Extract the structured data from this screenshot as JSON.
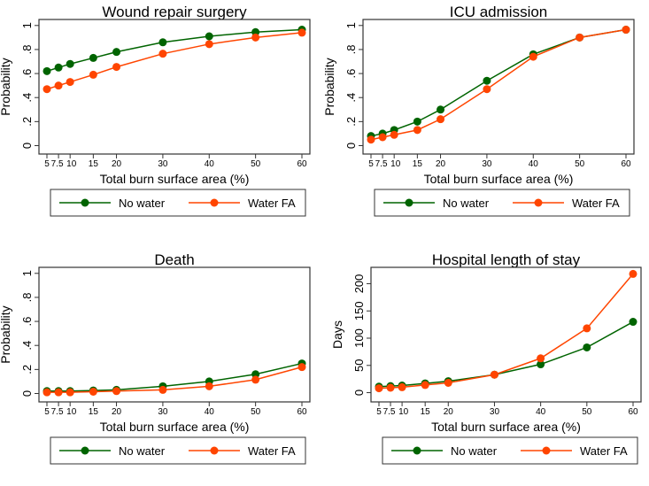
{
  "chart_data": [
    {
      "type": "line",
      "title": "Wound repair surgery",
      "xlabel": "Total burn surface area (%)",
      "ylabel": "Probability",
      "x": [
        5,
        7.5,
        10,
        15,
        20,
        30,
        40,
        50,
        60
      ],
      "x_tick_labels": [
        "5",
        "7.5",
        "10",
        "15",
        "20",
        "30",
        "40",
        "50",
        "60"
      ],
      "y_ticks": [
        0,
        0.2,
        0.4,
        0.6,
        0.8,
        1
      ],
      "y_tick_labels": [
        "0",
        ".2",
        ".4",
        ".6",
        ".8",
        "1"
      ],
      "ylim": [
        -0.07,
        1.05
      ],
      "series": [
        {
          "name": "No water",
          "color": "#006400",
          "values": [
            0.62,
            0.65,
            0.68,
            0.73,
            0.78,
            0.86,
            0.91,
            0.945,
            0.965
          ]
        },
        {
          "name": "Water FA",
          "color": "#ff4500",
          "values": [
            0.47,
            0.5,
            0.53,
            0.59,
            0.655,
            0.765,
            0.845,
            0.9,
            0.94
          ]
        }
      ],
      "legend": "bottom"
    },
    {
      "type": "line",
      "title": "ICU admission",
      "xlabel": "Total burn surface area (%)",
      "ylabel": "Probability",
      "x": [
        5,
        7.5,
        10,
        15,
        20,
        30,
        40,
        50,
        60
      ],
      "x_tick_labels": [
        "5",
        "7.5",
        "10",
        "15",
        "20",
        "30",
        "40",
        "50",
        "60"
      ],
      "y_ticks": [
        0,
        0.2,
        0.4,
        0.6,
        0.8,
        1
      ],
      "y_tick_labels": [
        "0",
        ".2",
        ".4",
        ".6",
        ".8",
        "1"
      ],
      "ylim": [
        -0.07,
        1.05
      ],
      "series": [
        {
          "name": "No water",
          "color": "#006400",
          "values": [
            0.08,
            0.1,
            0.13,
            0.2,
            0.3,
            0.54,
            0.76,
            0.9,
            0.965
          ]
        },
        {
          "name": "Water FA",
          "color": "#ff4500",
          "values": [
            0.05,
            0.07,
            0.09,
            0.13,
            0.22,
            0.47,
            0.74,
            0.9,
            0.965
          ]
        }
      ],
      "legend": "bottom"
    },
    {
      "type": "line",
      "title": "Death",
      "xlabel": "Total burn surface area (%)",
      "ylabel": "Probability",
      "x": [
        5,
        7.5,
        10,
        15,
        20,
        30,
        40,
        50,
        60
      ],
      "x_tick_labels": [
        "5",
        "7.5",
        "10",
        "15",
        "20",
        "30",
        "40",
        "50",
        "60"
      ],
      "y_ticks": [
        0,
        0.2,
        0.4,
        0.6,
        0.8,
        1
      ],
      "y_tick_labels": [
        "0",
        ".2",
        ".4",
        ".6",
        ".8",
        "1"
      ],
      "ylim": [
        -0.07,
        1.05
      ],
      "series": [
        {
          "name": "No water",
          "color": "#006400",
          "values": [
            0.02,
            0.02,
            0.02,
            0.025,
            0.03,
            0.06,
            0.1,
            0.16,
            0.25
          ]
        },
        {
          "name": "Water FA",
          "color": "#ff4500",
          "values": [
            0.01,
            0.01,
            0.01,
            0.015,
            0.02,
            0.03,
            0.06,
            0.115,
            0.22
          ]
        }
      ],
      "legend": "bottom"
    },
    {
      "type": "line",
      "title": "Hospital length of stay",
      "xlabel": "Total burn surface area (%)",
      "ylabel": "Days",
      "x": [
        5,
        7.5,
        10,
        15,
        20,
        30,
        40,
        50,
        60
      ],
      "x_tick_labels": [
        "5",
        "7.5",
        "10",
        "15",
        "20",
        "30",
        "40",
        "50",
        "60"
      ],
      "y_ticks": [
        0,
        50,
        100,
        150,
        200
      ],
      "y_tick_labels": [
        "0",
        "50",
        "100",
        "150",
        "200"
      ],
      "ylim": [
        -17,
        230
      ],
      "series": [
        {
          "name": "No water",
          "color": "#006400",
          "values": [
            11,
            12,
            13,
            17,
            21,
            33,
            52,
            83,
            130
          ]
        },
        {
          "name": "Water FA",
          "color": "#ff4500",
          "values": [
            8,
            9,
            10,
            14,
            18,
            33,
            63,
            118,
            218
          ]
        }
      ],
      "legend": "bottom"
    }
  ]
}
